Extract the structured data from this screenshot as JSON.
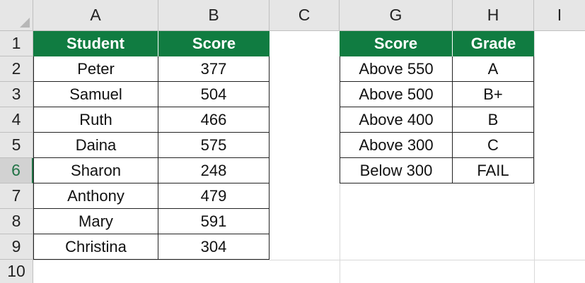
{
  "columns": [
    "A",
    "B",
    "C",
    "G",
    "H",
    "I"
  ],
  "rows": [
    "1",
    "2",
    "3",
    "4",
    "5",
    "6",
    "7",
    "8",
    "9",
    "10"
  ],
  "students_table": {
    "headers": [
      "Student",
      "Score"
    ],
    "rows": [
      [
        "Peter",
        "377"
      ],
      [
        "Samuel",
        "504"
      ],
      [
        "Ruth",
        "466"
      ],
      [
        "Daina",
        "575"
      ],
      [
        "Sharon",
        "248"
      ],
      [
        "Anthony",
        "479"
      ],
      [
        "Mary",
        "591"
      ],
      [
        "Christina",
        "304"
      ]
    ]
  },
  "grade_table": {
    "headers": [
      "Score",
      "Grade"
    ],
    "rows": [
      [
        "Above 550",
        "A"
      ],
      [
        "Above 500",
        "B+"
      ],
      [
        "Above 400",
        "B"
      ],
      [
        "Above 300",
        "C"
      ],
      [
        "Below 300",
        "FAIL"
      ]
    ]
  },
  "colors": {
    "header_fill": "#107c41",
    "header_text": "#ffffff",
    "active_row_indicator": "#217346"
  }
}
